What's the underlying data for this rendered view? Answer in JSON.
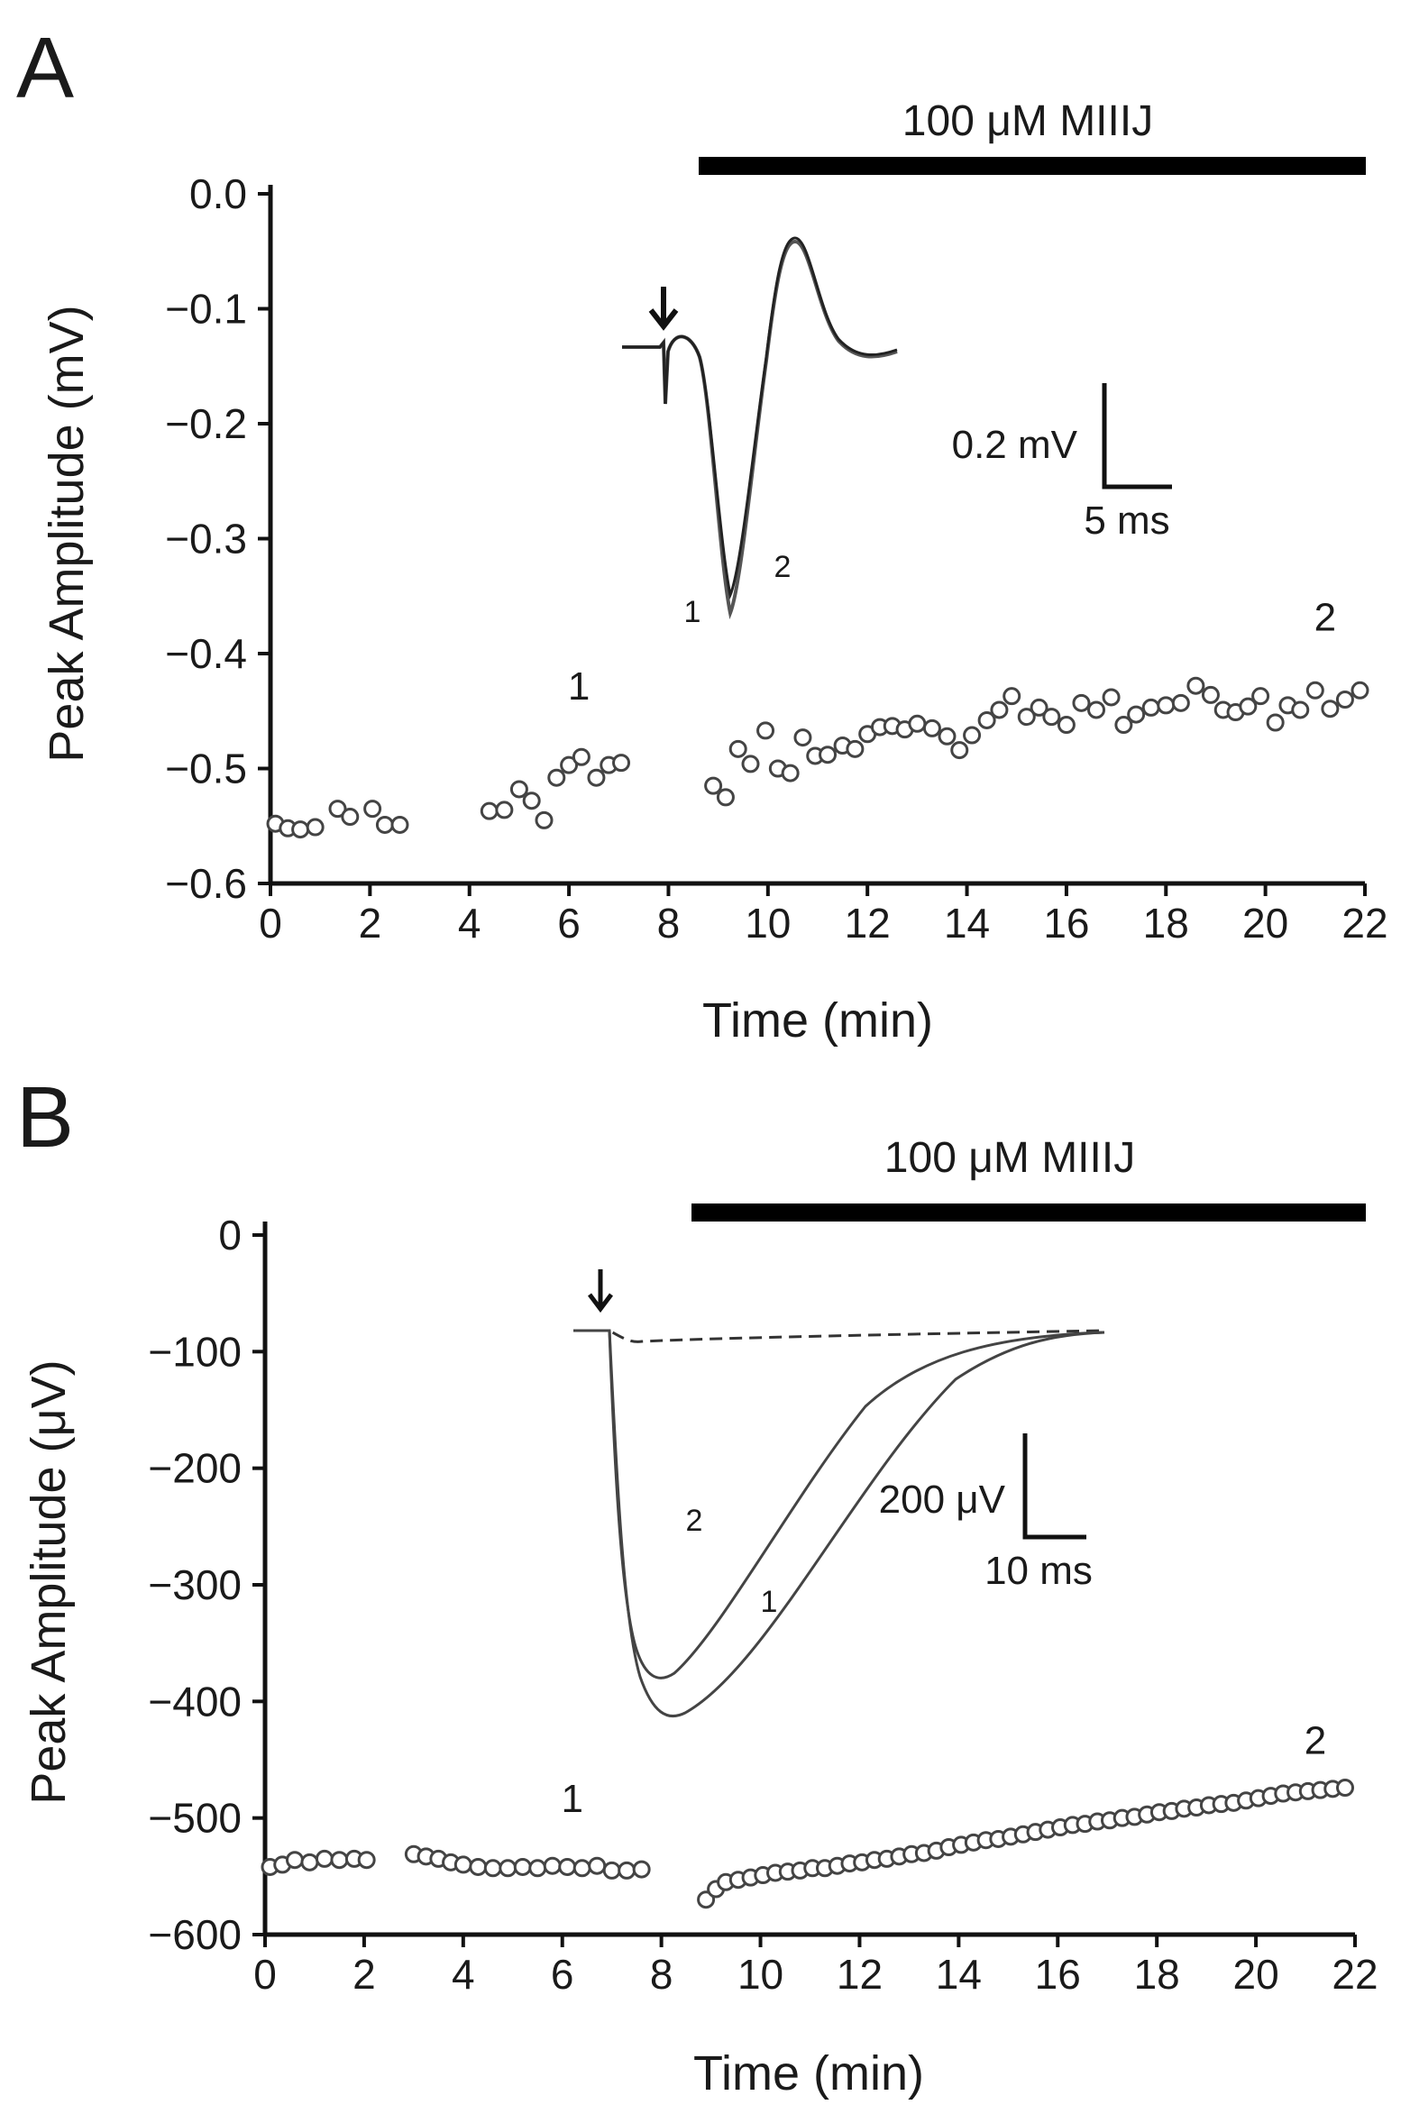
{
  "chart_data": [
    {
      "type": "scatter",
      "panel_label": "A",
      "xlabel": "Time (min)",
      "ylabel": "Peak Amplitude (mV)",
      "xlim": [
        0,
        22
      ],
      "ylim": [
        -0.6,
        0.0
      ],
      "x_ticks": [
        0,
        2,
        4,
        6,
        8,
        10,
        12,
        14,
        16,
        18,
        20,
        22
      ],
      "x_tick_labels": [
        "0",
        "2",
        "4",
        "6",
        "8",
        "10",
        "12",
        "14",
        "16",
        "18",
        "20",
        "22"
      ],
      "y_ticks": [
        0.0,
        -0.1,
        -0.2,
        -0.3,
        -0.4,
        -0.5,
        -0.6
      ],
      "y_tick_labels": [
        "0.0",
        "−0.1",
        "−0.2",
        "−0.3",
        "−0.4",
        "−0.5",
        "−0.6"
      ],
      "drug_bar": {
        "label": "100 μM MIIIJ",
        "x_start": 8.5,
        "x_end": 22
      },
      "annotations": [
        {
          "text": "1",
          "x": 6.2,
          "y": -0.44
        },
        {
          "text": "2",
          "x": 21.2,
          "y": -0.38
        }
      ],
      "series": [
        {
          "name": "Peak amplitude",
          "x": [
            0.1,
            0.35,
            0.6,
            0.9,
            1.35,
            1.6,
            2.05,
            2.3,
            2.6,
            4.4,
            4.7,
            5.0,
            5.25,
            5.5,
            5.75,
            6.0,
            6.25,
            6.55,
            6.8,
            7.05,
            8.9,
            9.15,
            9.4,
            9.65,
            9.95,
            10.2,
            10.45,
            10.7,
            10.95,
            11.2,
            11.5,
            11.75,
            12.0,
            12.25,
            12.5,
            12.75,
            13.0,
            13.3,
            13.6,
            13.85,
            14.1,
            14.4,
            14.65,
            14.9,
            15.2,
            15.45,
            15.7,
            16.0,
            16.3,
            16.6,
            16.9,
            17.15,
            17.4,
            17.7,
            18.0,
            18.3,
            18.6,
            18.9,
            19.15,
            19.4,
            19.65,
            19.9,
            20.2,
            20.45,
            20.7,
            21.0,
            21.3,
            21.6,
            21.9
          ],
          "y": [
            -0.548,
            -0.552,
            -0.553,
            -0.551,
            -0.535,
            -0.542,
            -0.535,
            -0.549,
            -0.549,
            -0.537,
            -0.536,
            -0.518,
            -0.528,
            -0.545,
            -0.508,
            -0.497,
            -0.49,
            -0.508,
            -0.497,
            -0.495,
            -0.515,
            -0.525,
            -0.483,
            -0.496,
            -0.467,
            -0.5,
            -0.504,
            -0.473,
            -0.489,
            -0.488,
            -0.48,
            -0.483,
            -0.47,
            -0.464,
            -0.463,
            -0.466,
            -0.461,
            -0.465,
            -0.472,
            -0.484,
            -0.471,
            -0.458,
            -0.449,
            -0.437,
            -0.455,
            -0.447,
            -0.455,
            -0.462,
            -0.443,
            -0.449,
            -0.438,
            -0.462,
            -0.453,
            -0.447,
            -0.445,
            -0.443,
            -0.428,
            -0.436,
            -0.449,
            -0.451,
            -0.446,
            -0.437,
            -0.46,
            -0.445,
            -0.449,
            -0.432,
            -0.448,
            -0.44,
            -0.432
          ]
        }
      ],
      "inset": {
        "stimulus_marker": "arrow",
        "trace_labels": [
          "1",
          "2"
        ],
        "scale_bar": {
          "vertical": "0.2 mV",
          "horizontal": "5 ms"
        }
      }
    },
    {
      "type": "scatter",
      "panel_label": "B",
      "xlabel": "Time (min)",
      "ylabel": "Peak Amplitude (μV)",
      "xlim": [
        0,
        22
      ],
      "ylim": [
        -600,
        0
      ],
      "x_ticks": [
        0,
        2,
        4,
        6,
        8,
        10,
        12,
        14,
        16,
        18,
        20,
        22
      ],
      "x_tick_labels": [
        "0",
        "2",
        "4",
        "6",
        "8",
        "10",
        "12",
        "14",
        "16",
        "18",
        "20",
        "22"
      ],
      "y_ticks": [
        0,
        -100,
        -200,
        -300,
        -400,
        -500,
        -600
      ],
      "y_tick_labels": [
        "0",
        "−100",
        "−200",
        "−300",
        "−400",
        "−500",
        "−600"
      ],
      "drug_bar": {
        "label": "100 μM MIIIJ",
        "x_start": 8.5,
        "x_end": 22
      },
      "annotations": [
        {
          "text": "1",
          "x": 6.2,
          "y": -495
        },
        {
          "text": "2",
          "x": 21.2,
          "y": -445
        }
      ],
      "series": [
        {
          "name": "Peak amplitude",
          "x": [
            0.1,
            0.35,
            0.6,
            0.9,
            1.2,
            1.5,
            1.8,
            2.05,
            3.0,
            3.25,
            3.5,
            3.75,
            4.0,
            4.3,
            4.6,
            4.9,
            5.2,
            5.5,
            5.8,
            6.1,
            6.4,
            6.7,
            7.0,
            7.3,
            7.6,
            8.9,
            9.1,
            9.3,
            9.55,
            9.8,
            10.05,
            10.3,
            10.55,
            10.8,
            11.05,
            11.3,
            11.55,
            11.8,
            12.05,
            12.3,
            12.55,
            12.8,
            13.05,
            13.3,
            13.55,
            13.8,
            14.05,
            14.3,
            14.55,
            14.8,
            15.05,
            15.3,
            15.55,
            15.8,
            16.05,
            16.3,
            16.55,
            16.8,
            17.05,
            17.3,
            17.55,
            17.8,
            18.05,
            18.3,
            18.55,
            18.8,
            19.05,
            19.3,
            19.55,
            19.8,
            20.05,
            20.3,
            20.55,
            20.8,
            21.05,
            21.3,
            21.55,
            21.8
          ],
          "y": [
            -542,
            -540,
            -536,
            -538,
            -535,
            -536,
            -535,
            -536,
            -531,
            -533,
            -535,
            -538,
            -540,
            -542,
            -543,
            -543,
            -542,
            -543,
            -541,
            -542,
            -543,
            -541,
            -545,
            -545,
            -544,
            -570,
            -561,
            -555,
            -553,
            -551,
            -549,
            -547,
            -546,
            -545,
            -543,
            -543,
            -541,
            -539,
            -538,
            -536,
            -535,
            -533,
            -531,
            -530,
            -528,
            -525,
            -523,
            -521,
            -519,
            -518,
            -516,
            -514,
            -512,
            -510,
            -508,
            -506,
            -505,
            -503,
            -502,
            -500,
            -499,
            -497,
            -495,
            -494,
            -492,
            -491,
            -489,
            -488,
            -487,
            -485,
            -483,
            -481,
            -479,
            -478,
            -477,
            -476,
            -475,
            -474
          ]
        }
      ],
      "inset": {
        "stimulus_marker": "arrow",
        "trace_labels": [
          "2",
          "1"
        ],
        "scale_bar": {
          "vertical": "200 μV",
          "horizontal": "10 ms"
        }
      }
    }
  ]
}
